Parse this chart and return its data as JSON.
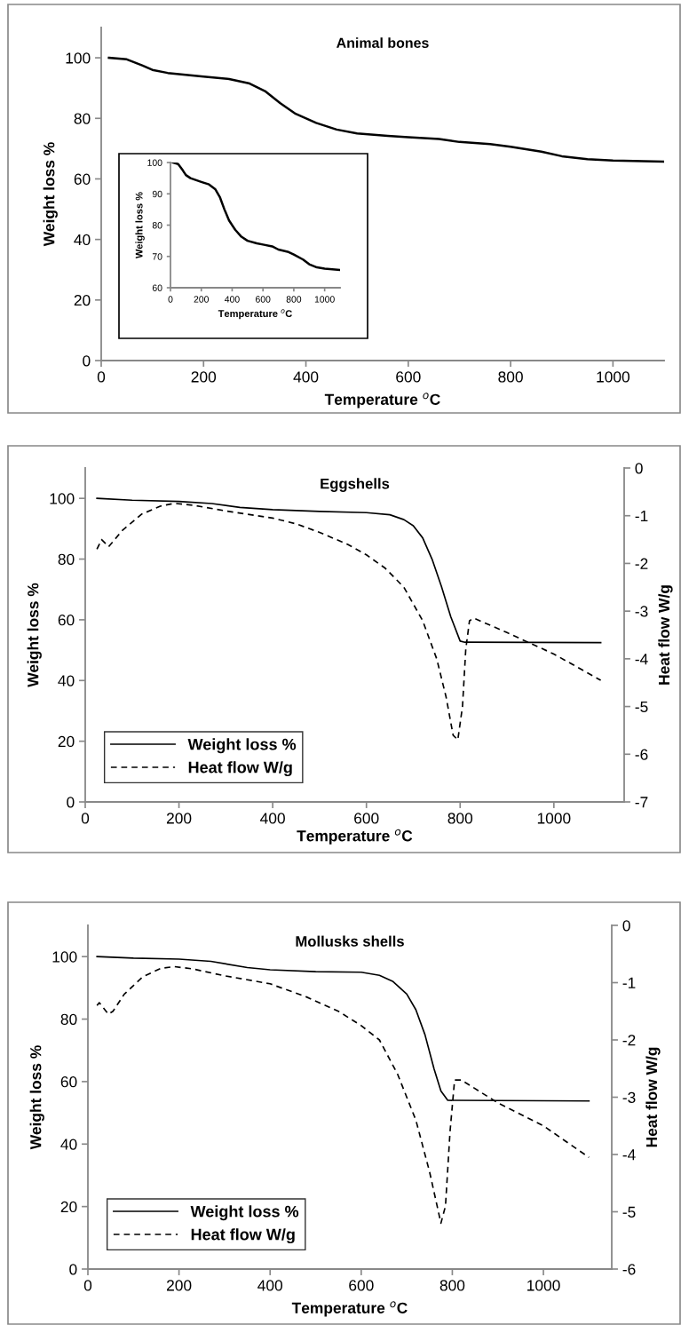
{
  "chart_data": [
    {
      "type": "line",
      "title": "Animal bones",
      "xlabel": "Temperature $^{o}$C",
      "ylabel": "Weight loss %",
      "xlim": [
        0,
        1100
      ],
      "ylim": [
        0,
        110
      ],
      "xticks": [
        0,
        200,
        400,
        600,
        800,
        1000
      ],
      "yticks": [
        0,
        20,
        40,
        60,
        80,
        100
      ],
      "series": [
        {
          "color": "#000000",
          "line_style": "solid",
          "x": [
            15,
            50,
            80,
            100,
            130,
            200,
            250,
            290,
            320,
            350,
            380,
            420,
            460,
            500,
            560,
            600,
            660,
            700,
            760,
            800,
            860,
            900,
            950,
            1000,
            1100
          ],
          "values": [
            100,
            99.5,
            97.5,
            96,
            95,
            93.8,
            93,
            91.5,
            89,
            85,
            81.5,
            78.5,
            76.3,
            75,
            74.2,
            73.8,
            73.2,
            72.2,
            71.5,
            70.6,
            69,
            67.5,
            66.5,
            66.1,
            65.7
          ]
        }
      ]
    },
    {
      "type": "line",
      "xlabel": "Temperature $^{o}$C",
      "ylabel": "Weight loss %",
      "xlim": [
        0,
        1100
      ],
      "ylim": [
        60,
        100
      ],
      "xticks": [
        0,
        200,
        400,
        600,
        800,
        1000
      ],
      "yticks": [
        60,
        70,
        80,
        90,
        100
      ],
      "series": [
        {
          "color": "#000000",
          "line_style": "solid",
          "x": [
            15,
            50,
            80,
            100,
            130,
            200,
            250,
            290,
            320,
            350,
            380,
            420,
            460,
            500,
            560,
            600,
            660,
            700,
            760,
            800,
            860,
            900,
            950,
            1000,
            1100
          ],
          "values": [
            100,
            99.5,
            97.5,
            96,
            95,
            93.8,
            93,
            91.5,
            89,
            85,
            81.5,
            78.5,
            76.3,
            75,
            74.2,
            73.8,
            73.2,
            72.2,
            71.5,
            70.6,
            69,
            67.5,
            66.5,
            66.1,
            65.7
          ]
        }
      ]
    },
    {
      "type": "line",
      "title": "Eggshells",
      "xlabel": "Temperature $^{o}$C",
      "ylabel": "Weight loss %",
      "y2label": "Heat flow W/g",
      "xlim": [
        0,
        1150
      ],
      "ylim": [
        0,
        110
      ],
      "y2lim": [
        -7,
        0
      ],
      "xticks": [
        0,
        200,
        400,
        600,
        800,
        1000
      ],
      "yticks": [
        0,
        20,
        40,
        60,
        80,
        100
      ],
      "y2ticks": [
        -7,
        -6,
        -5,
        -4,
        -3,
        -2,
        -1,
        0
      ],
      "legend": "lower left",
      "series": [
        {
          "name": "Weight loss %",
          "color": "#000000",
          "line_style": "solid",
          "x": [
            25,
            100,
            200,
            270,
            330,
            400,
            500,
            600,
            650,
            680,
            700,
            720,
            740,
            760,
            780,
            800,
            810,
            1100
          ],
          "values": [
            100,
            99.4,
            99,
            98.3,
            97,
            96.3,
            95.7,
            95.3,
            94.6,
            93,
            91,
            87,
            80,
            71,
            61,
            53,
            52.6,
            52.5
          ]
        },
        {
          "name": "Heat flow W/g",
          "color": "#000000",
          "line_style": "dashed",
          "axis": "y2",
          "x": [
            25,
            35,
            50,
            80,
            120,
            160,
            190,
            230,
            300,
            400,
            450,
            500,
            560,
            600,
            640,
            680,
            720,
            750,
            770,
            785,
            795,
            805,
            812,
            820,
            830,
            900,
            1000,
            1100
          ],
          "values": [
            -1.7,
            -1.5,
            -1.65,
            -1.3,
            -0.97,
            -0.8,
            -0.74,
            -0.78,
            -0.9,
            -1.05,
            -1.17,
            -1.35,
            -1.6,
            -1.82,
            -2.1,
            -2.5,
            -3.2,
            -4.0,
            -4.8,
            -5.6,
            -5.7,
            -5.0,
            -3.8,
            -3.2,
            -3.15,
            -3.45,
            -3.9,
            -4.45
          ]
        }
      ]
    },
    {
      "type": "line",
      "title": "Mollusks shells",
      "xlabel": "Temperature $^{o}$C",
      "ylabel": "Weight loss %",
      "y2label": "Heat flow W/g",
      "xlim": [
        0,
        1150
      ],
      "ylim": [
        0,
        110
      ],
      "y2lim": [
        -6,
        0
      ],
      "xticks": [
        0,
        200,
        400,
        600,
        800,
        1000
      ],
      "yticks": [
        0,
        20,
        40,
        60,
        80,
        100
      ],
      "y2ticks": [
        -6,
        -5,
        -4,
        -3,
        -2,
        -1,
        0
      ],
      "legend": "lower left",
      "series": [
        {
          "name": "Weight loss %",
          "color": "#000000",
          "line_style": "solid",
          "x": [
            20,
            100,
            200,
            270,
            350,
            400,
            500,
            600,
            640,
            670,
            700,
            720,
            740,
            760,
            775,
            790,
            1100
          ],
          "values": [
            100,
            99.5,
            99.2,
            98.5,
            96.5,
            95.8,
            95.2,
            95,
            94,
            92,
            88,
            83,
            75,
            64,
            57,
            54,
            53.8
          ]
        },
        {
          "name": "Heat flow W/g",
          "color": "#000000",
          "line_style": "dashed",
          "axis": "y2",
          "x": [
            20,
            25,
            45,
            55,
            80,
            120,
            160,
            190,
            230,
            300,
            400,
            480,
            550,
            600,
            640,
            680,
            720,
            750,
            775,
            785,
            795,
            805,
            820,
            900,
            1000,
            1100
          ],
          "values": [
            -1.4,
            -1.35,
            -1.55,
            -1.5,
            -1.2,
            -0.9,
            -0.75,
            -0.72,
            -0.76,
            -0.88,
            -1.02,
            -1.25,
            -1.5,
            -1.75,
            -2.0,
            -2.6,
            -3.4,
            -4.3,
            -5.2,
            -4.9,
            -3.6,
            -2.7,
            -2.7,
            -3.1,
            -3.5,
            -4.05
          ]
        }
      ]
    }
  ]
}
